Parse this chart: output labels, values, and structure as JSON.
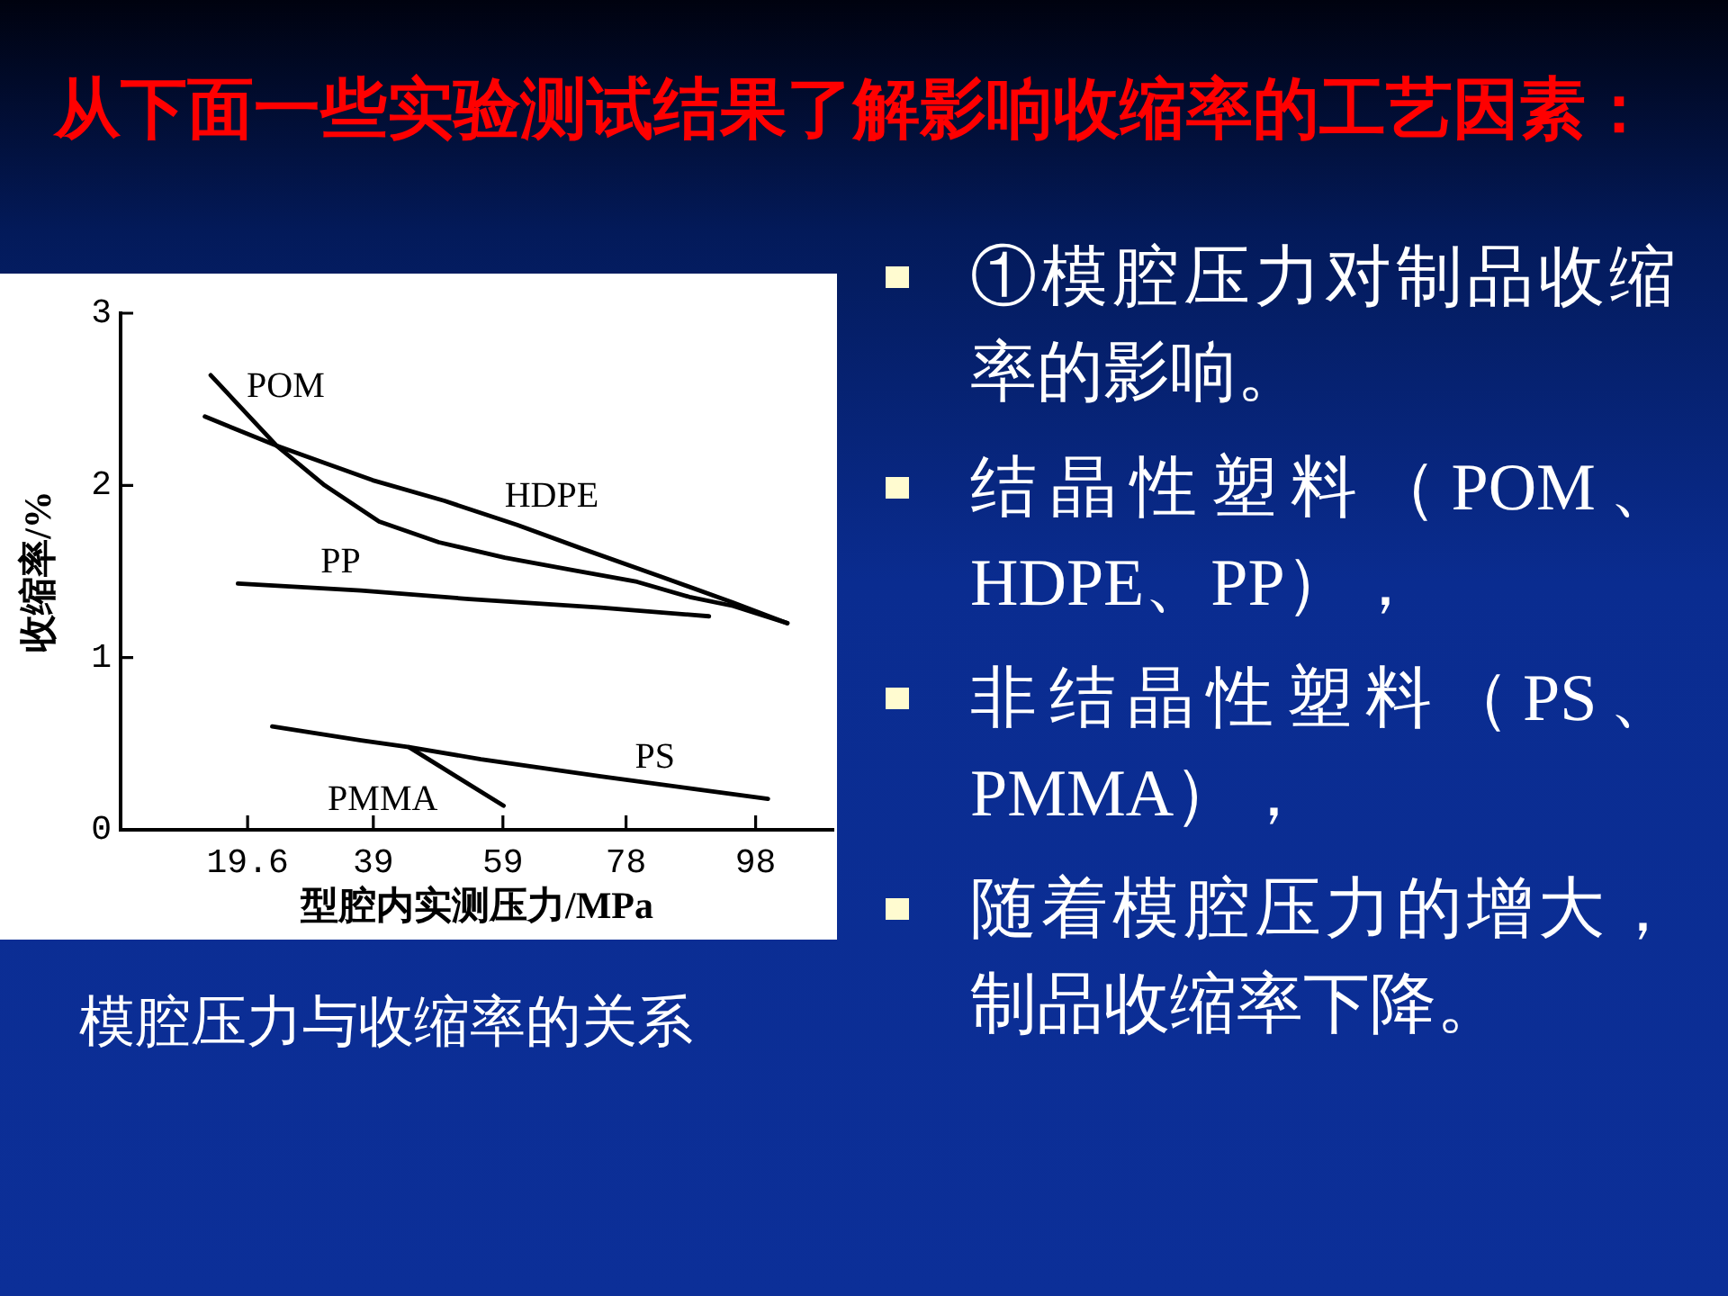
{
  "chart_data": {
    "type": "line",
    "title": "从下面一些实验测试结果了解影响收缩率的工艺因素：",
    "xlabel": "型腔内实测压力/MPa",
    "ylabel": "收缩率/%",
    "annotations": [
      "模腔压力与收缩率的关系",
      "①模腔压力对制品收缩率的影响。",
      "结晶性塑料（POM、HDPE、PP），",
      "非结晶性塑料（PS、PMMA），",
      "随着模腔压力的增大，制品收缩率下降。"
    ],
    "xlim": [
      0,
      110
    ],
    "xticks": [
      19.6,
      39,
      59,
      78,
      98
    ],
    "ylim": [
      0,
      3
    ],
    "yticks": [
      0,
      1,
      2,
      3
    ],
    "line_style": "solid",
    "series": [
      {
        "name": "POM",
        "color": "#000000",
        "x": [
          13.9,
          24.1,
          31.5,
          39.9,
          49.1,
          59.3,
          69.5,
          79.7,
          88.0,
          94.5,
          102.9
        ],
        "values": [
          2.64,
          2.23,
          2.0,
          1.79,
          1.67,
          1.58,
          1.51,
          1.44,
          1.35,
          1.3,
          1.2
        ]
      },
      {
        "name": "HDPE",
        "color": "#000000",
        "x": [
          13.0,
          24.1,
          38.9,
          50.0,
          61.2,
          71.4,
          83.4,
          94.5,
          102.9
        ],
        "values": [
          2.4,
          2.23,
          2.03,
          1.91,
          1.77,
          1.63,
          1.47,
          1.32,
          1.2
        ]
      },
      {
        "name": "PP",
        "color": "#000000",
        "x": [
          18.1,
          37.1,
          53.8,
          74.1,
          90.8
        ],
        "values": [
          1.43,
          1.39,
          1.34,
          1.29,
          1.24
        ]
      },
      {
        "name": "PS",
        "color": "#000000",
        "x": [
          23.4,
          37.1,
          44.5,
          55.6,
          74.1,
          88.0,
          99.9
        ],
        "values": [
          0.6,
          0.52,
          0.48,
          0.41,
          0.31,
          0.24,
          0.18
        ]
      },
      {
        "name": "PMMA",
        "color": "#000000",
        "x": [
          44.5,
          59.1
        ],
        "values": [
          0.48,
          0.14
        ]
      }
    ]
  }
}
